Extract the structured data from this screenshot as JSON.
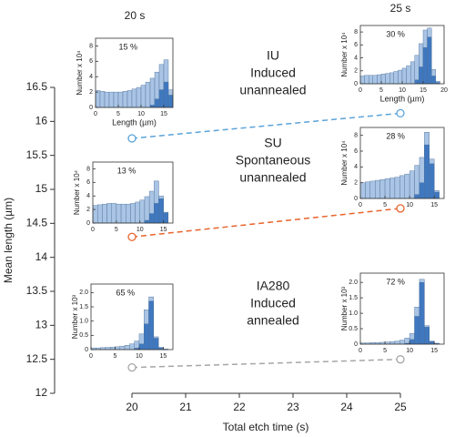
{
  "chart_data": [
    {
      "type": "line",
      "xlabel": "Total etch time (s)",
      "ylabel": "Mean length (µm)",
      "annotations": [
        "20 s",
        "25 s"
      ],
      "x": [
        20,
        25
      ],
      "series": [
        {
          "name": "IU",
          "label_lines": [
            "Induced",
            "unannealed"
          ],
          "color": "#5ba3d9",
          "values": [
            15.75,
            16.12
          ]
        },
        {
          "name": "SU",
          "label_lines": [
            "Spontaneous",
            "unannealed"
          ],
          "color": "#e8632c",
          "values": [
            14.3,
            14.72
          ]
        },
        {
          "name": "IA280",
          "label_lines": [
            "Induced",
            "annealed"
          ],
          "color": "#a6a6a6",
          "values": [
            12.38,
            12.5
          ]
        }
      ],
      "xlim": [
        20,
        25
      ],
      "xticks": [
        20,
        21,
        22,
        23,
        24,
        25
      ],
      "ylim": [
        12,
        16.5
      ],
      "yticks": [
        12,
        12.5,
        13,
        13.5,
        14,
        14.5,
        15,
        15.5,
        16,
        16.5
      ]
    },
    {
      "type": "histogram",
      "ylabel": "Number x 10⁴",
      "xlabel": "Length (µm)",
      "annotation": "15 %",
      "bins": [
        0,
        1,
        2,
        3,
        4,
        5,
        6,
        7,
        8,
        9,
        10,
        11,
        12,
        13,
        14,
        15,
        16,
        17
      ],
      "series": [
        {
          "color": "#a9c4e4",
          "values": [
            2.2,
            2.1,
            2.0,
            2.0,
            2.0,
            2.0,
            2.1,
            2.2,
            2.4,
            2.6,
            2.9,
            3.3,
            3.8,
            4.6,
            5.6,
            6.2,
            2.3
          ]
        },
        {
          "color": "#3f78bf",
          "values": [
            0,
            0,
            0,
            0,
            0,
            0,
            0,
            0,
            0,
            0,
            0,
            0,
            0.3,
            1.1,
            2.3,
            3.3,
            1.6
          ]
        }
      ],
      "xlim": [
        0,
        17
      ],
      "xticks": [
        0,
        5,
        10,
        15
      ],
      "ylim": [
        0,
        9
      ],
      "yticks": [
        0,
        2,
        4,
        6,
        8
      ]
    },
    {
      "type": "histogram",
      "ylabel": "Number x 10⁴",
      "xlabel": "Length (µm)",
      "annotation": "30 %",
      "bins": [
        0,
        1,
        2,
        3,
        4,
        5,
        6,
        7,
        8,
        9,
        10,
        11,
        12,
        13,
        14,
        15,
        16,
        17,
        18,
        19
      ],
      "series": [
        {
          "color": "#a9c4e4",
          "values": [
            1.2,
            1.3,
            1.3,
            1.3,
            1.4,
            1.5,
            1.6,
            1.7,
            1.9,
            2.1,
            2.4,
            2.8,
            3.4,
            4.4,
            6.2,
            8.3,
            8.6,
            2.2,
            0.4
          ]
        },
        {
          "color": "#3f78bf",
          "values": [
            0,
            0,
            0,
            0,
            0,
            0,
            0,
            0,
            0,
            0,
            0,
            0,
            0,
            0.6,
            2.6,
            5.6,
            7.2,
            1.2,
            0.2
          ]
        }
      ],
      "xlim": [
        0,
        20
      ],
      "xticks": [
        0,
        5,
        10,
        15,
        20
      ],
      "ylim": [
        0,
        9
      ],
      "yticks": [
        0,
        2,
        4,
        6,
        8
      ]
    },
    {
      "type": "histogram",
      "ylabel": "Number x 10⁴",
      "annotation": "13 %",
      "bins": [
        0,
        1,
        2,
        3,
        4,
        5,
        6,
        7,
        8,
        9,
        10,
        11,
        12,
        13,
        14,
        15,
        16
      ],
      "series": [
        {
          "color": "#a9c4e4",
          "values": [
            2.6,
            2.7,
            2.8,
            2.9,
            2.9,
            2.8,
            2.8,
            2.8,
            2.9,
            3.1,
            3.4,
            3.9,
            4.7,
            6.2,
            4.0,
            1.6
          ]
        },
        {
          "color": "#3f78bf",
          "values": [
            0,
            0,
            0,
            0,
            0,
            0,
            0,
            0,
            0,
            0,
            0,
            0.4,
            1.4,
            2.9,
            3.6,
            1.5
          ]
        }
      ],
      "xlim": [
        0,
        17
      ],
      "xticks": [
        0,
        5,
        10,
        15
      ],
      "ylim": [
        0,
        9
      ],
      "yticks": [
        0,
        2,
        4,
        6,
        8
      ]
    },
    {
      "type": "histogram",
      "ylabel": "Number x 10⁴",
      "annotation": "28 %",
      "bins": [
        0,
        1,
        2,
        3,
        4,
        5,
        6,
        7,
        8,
        9,
        10,
        11,
        12,
        13,
        14,
        15,
        16
      ],
      "series": [
        {
          "color": "#a9c4e4",
          "values": [
            2.0,
            2.1,
            2.2,
            2.3,
            2.4,
            2.5,
            2.6,
            2.7,
            2.9,
            3.1,
            3.5,
            4.2,
            5.2,
            8.4,
            5.0,
            1.0
          ]
        },
        {
          "color": "#3f78bf",
          "values": [
            0,
            0,
            0,
            0,
            0,
            0,
            0,
            0,
            0,
            0,
            0,
            0.5,
            2.0,
            6.8,
            4.4,
            0.8
          ]
        }
      ],
      "xlim": [
        0,
        17
      ],
      "xticks": [
        0,
        5,
        10,
        15
      ],
      "ylim": [
        0,
        9
      ],
      "yticks": [
        0,
        2,
        4,
        6,
        8
      ]
    },
    {
      "type": "histogram",
      "ylabel": "Number x 10³",
      "annotation": "65 %",
      "bins": [
        0,
        1,
        2,
        3,
        4,
        5,
        6,
        7,
        8,
        9,
        10,
        11,
        12,
        13,
        14,
        15,
        16
      ],
      "series": [
        {
          "color": "#a9c4e4",
          "values": [
            0.06,
            0.06,
            0.07,
            0.08,
            0.09,
            0.1,
            0.12,
            0.15,
            0.2,
            0.3,
            0.55,
            1.4,
            1.85,
            0.45,
            0.08,
            0.02
          ]
        },
        {
          "color": "#3f78bf",
          "values": [
            0,
            0,
            0,
            0,
            0,
            0,
            0,
            0,
            0,
            0.05,
            0.2,
            0.9,
            1.7,
            0.4,
            0.06,
            0.01
          ]
        }
      ],
      "xlim": [
        0,
        17
      ],
      "xticks": [
        0,
        5,
        10,
        15
      ],
      "ylim": [
        0,
        2.3
      ],
      "yticks": [
        0,
        0.5,
        {
          "value": 1,
          "label": "1.0"
        },
        1.5,
        {
          "value": 2,
          "label": "2.0"
        }
      ]
    },
    {
      "type": "histogram",
      "ylabel": "Number x 10³",
      "annotation": "72 %",
      "bins": [
        0,
        1,
        2,
        3,
        4,
        5,
        6,
        7,
        8,
        9,
        10,
        11,
        12,
        13,
        14,
        15,
        16
      ],
      "series": [
        {
          "color": "#a9c4e4",
          "values": [
            0.04,
            0.04,
            0.05,
            0.05,
            0.06,
            0.07,
            0.08,
            0.1,
            0.13,
            0.2,
            0.35,
            1.2,
            2.1,
            0.6,
            0.1,
            0.03
          ]
        },
        {
          "color": "#3f78bf",
          "values": [
            0,
            0,
            0,
            0,
            0,
            0,
            0,
            0,
            0,
            0.03,
            0.15,
            0.9,
            2.0,
            0.55,
            0.08,
            0.02
          ]
        }
      ],
      "xlim": [
        0,
        17
      ],
      "xticks": [
        0,
        5,
        10,
        15
      ],
      "ylim": [
        0,
        2.3
      ],
      "yticks": [
        0,
        0.5,
        {
          "value": 1,
          "label": "1.0"
        },
        1.5,
        {
          "value": 2,
          "label": "2.0"
        }
      ]
    }
  ]
}
